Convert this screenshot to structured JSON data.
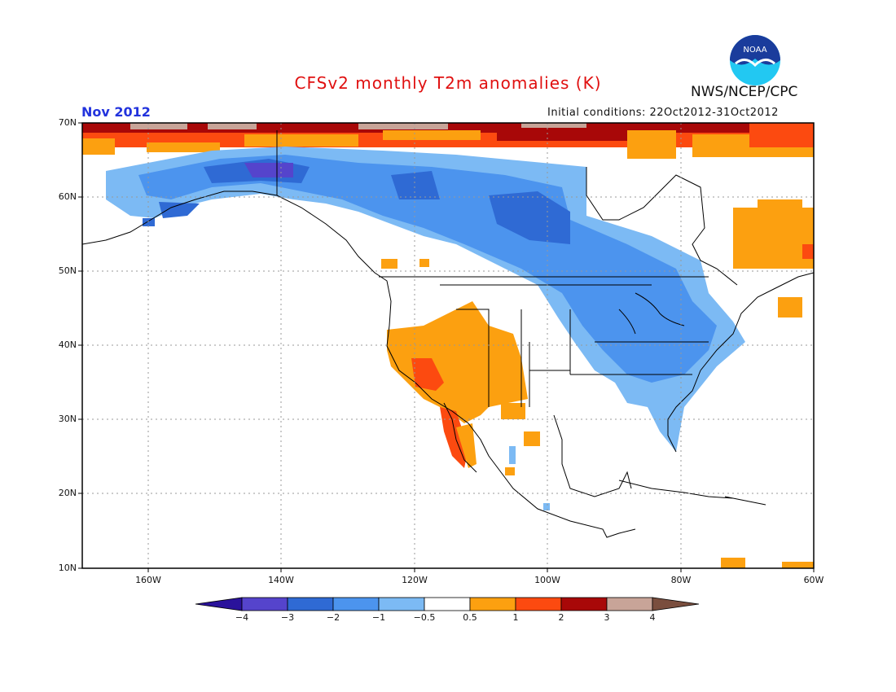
{
  "header": {
    "title": "CFSv2 monthly T2m anomalies (K)",
    "agency": "NWS/NCEP/CPC",
    "logo_text": "NOAA",
    "period": "Nov 2012",
    "initial_conditions": "Initial conditions: 22Oct2012-31Oct2012"
  },
  "map": {
    "lat_labels": [
      "70N",
      "60N",
      "50N",
      "40N",
      "30N",
      "20N",
      "10N"
    ],
    "lon_labels": [
      "160W",
      "140W",
      "120W",
      "100W",
      "80W",
      "60W"
    ],
    "lat_range": [
      10,
      70
    ],
    "lon_range": [
      -171,
      -61
    ],
    "grid": "dotted 10-degree lat/lon"
  },
  "colorbar": {
    "labels": [
      "−4",
      "−3",
      "−2",
      "−1",
      "−0.5",
      "0.5",
      "1",
      "2",
      "3",
      "4"
    ],
    "bin_colors": [
      "#2a129b",
      "#5544cc",
      "#2f6ad4",
      "#4c94ee",
      "#7cbaf4",
      "#ffffff",
      "#fca010",
      "#fc4a10",
      "#a80808",
      "#c8a498",
      "#7a4e3e"
    ]
  },
  "colors": {
    "title": "#e01010",
    "period": "#2233dd",
    "noaa_blue": "#1a3c9c",
    "noaa_cyan": "#22c8f2"
  }
}
